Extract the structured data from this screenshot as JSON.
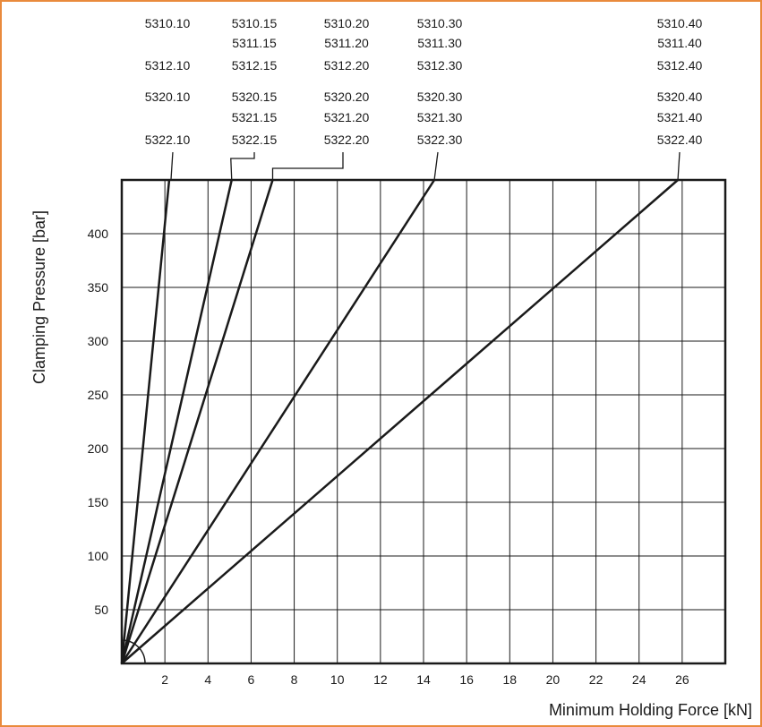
{
  "frame": {
    "border_color": "#e98a3c"
  },
  "chart_data": {
    "type": "line",
    "title": "",
    "xlabel": "Minimum Holding Force [kN]",
    "ylabel": "Clamping Pressure [bar]",
    "xlim": [
      0,
      28
    ],
    "ylim": [
      0,
      450
    ],
    "grid": true,
    "x_ticks": [
      2,
      4,
      6,
      8,
      10,
      12,
      14,
      16,
      18,
      20,
      22,
      24,
      26
    ],
    "y_ticks": [
      50,
      100,
      150,
      200,
      250,
      300,
      350,
      400
    ],
    "series": [
      {
        "name": "5310.10 / 5312.10 / 5320.10 / 5322.10",
        "labels": [
          "5310.10",
          "",
          "5312.10",
          "5320.10",
          "",
          "5322.10"
        ],
        "x": [
          0,
          2.2
        ],
        "y": [
          0,
          450
        ]
      },
      {
        "name": "5310.15 / 5311.15 / 5312.15 / 5320.15 / 5321.15 / 5322.15",
        "labels": [
          "5310.15",
          "5311.15",
          "5312.15",
          "5320.15",
          "5321.15",
          "5322.15"
        ],
        "x": [
          0,
          5.1
        ],
        "y": [
          0,
          450
        ]
      },
      {
        "name": "5310.20 / 5311.20 / 5312.20 / 5320.20 / 5321.20 / 5322.20",
        "labels": [
          "5310.20",
          "5311.20",
          "5312.20",
          "5320.20",
          "5321.20",
          "5322.20"
        ],
        "x": [
          0,
          7.0
        ],
        "y": [
          0,
          450
        ]
      },
      {
        "name": "5310.30 / 5311.30 / 5312.30 / 5320.30 / 5321.30 / 5322.30",
        "labels": [
          "5310.30",
          "5311.30",
          "5312.30",
          "5320.30",
          "5321.30",
          "5322.30"
        ],
        "x": [
          0,
          14.5
        ],
        "y": [
          0,
          450
        ]
      },
      {
        "name": "5310.40 / 5311.40 / 5312.40 / 5320.40 / 5321.40 / 5322.40",
        "labels": [
          "5310.40",
          "5311.40",
          "5312.40",
          "5320.40",
          "5321.40",
          "5322.40"
        ],
        "x": [
          0,
          25.8
        ],
        "y": [
          0,
          450
        ]
      }
    ]
  }
}
